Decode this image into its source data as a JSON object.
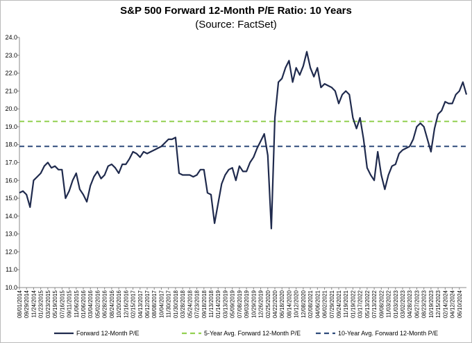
{
  "chart_data": {
    "type": "line",
    "title": "S&P 500 Forward 12-Month P/E Ratio: 10 Years",
    "subtitle": "(Source: FactSet)",
    "categories": [
      "08/01/2014",
      null,
      "09/29/2014",
      null,
      "11/24/2014",
      null,
      "01/23/2015",
      null,
      "03/23/2015",
      null,
      "05/19/2015",
      null,
      "07/16/2015",
      null,
      "09/11/2015",
      null,
      "11/06/2015",
      null,
      "01/06/2016",
      null,
      "03/04/2016",
      null,
      "05/02/2016",
      null,
      "06/28/2016",
      null,
      "08/24/2016",
      null,
      "10/20/2016",
      null,
      "12/16/2016",
      null,
      "02/15/2017",
      null,
      "04/13/2017",
      null,
      "06/12/2017",
      null,
      "08/08/2017",
      null,
      "10/04/2017",
      null,
      "11/30/2017",
      null,
      "01/30/2018",
      null,
      "03/28/2018",
      null,
      "05/24/2018",
      null,
      "07/23/2018",
      null,
      "09/18/2018",
      null,
      "11/13/2018",
      null,
      "01/14/2019",
      null,
      "03/13/2019",
      null,
      "05/09/2019",
      null,
      "07/08/2019",
      null,
      "09/03/2019",
      null,
      "10/29/2019",
      null,
      "12/26/2019",
      null,
      "02/25/2020",
      null,
      "04/22/2020",
      null,
      "06/18/2020",
      null,
      "08/14/2020",
      null,
      "10/12/2020",
      null,
      "12/08/2020",
      null,
      "02/08/2021",
      null,
      "04/06/2021",
      null,
      "06/02/2021",
      null,
      "07/29/2021",
      null,
      "09/24/2021",
      null,
      "11/19/2021",
      null,
      "01/19/2022",
      null,
      "03/17/2022",
      null,
      "05/13/2022",
      null,
      "07/13/2022",
      null,
      "09/08/2022",
      null,
      "11/03/2022",
      null,
      "01/03/2023",
      null,
      "03/02/2023",
      null,
      "04/28/2023",
      null,
      "06/27/2023",
      null,
      "08/23/2023",
      null,
      "10/19/2023",
      null,
      "12/15/2023",
      null,
      "02/14/2024",
      null,
      "04/12/2024",
      null,
      "06/10/2024",
      null,
      null
    ],
    "series": [
      {
        "name": "Forward 12-Month P/E",
        "color": "#1f2a4d",
        "values": [
          15.3,
          15.4,
          15.2,
          14.5,
          16.0,
          16.2,
          16.4,
          16.8,
          17.0,
          16.7,
          16.8,
          16.6,
          16.6,
          15.0,
          15.4,
          16.0,
          16.4,
          15.5,
          15.2,
          14.8,
          15.7,
          16.2,
          16.5,
          16.1,
          16.3,
          16.8,
          16.9,
          16.7,
          16.4,
          16.9,
          16.9,
          17.2,
          17.6,
          17.5,
          17.3,
          17.6,
          17.5,
          17.6,
          17.7,
          17.8,
          17.9,
          18.1,
          18.3,
          18.3,
          18.4,
          16.4,
          16.3,
          16.3,
          16.3,
          16.2,
          16.3,
          16.6,
          16.6,
          15.3,
          15.2,
          13.6,
          14.7,
          15.8,
          16.3,
          16.6,
          16.7,
          16.0,
          16.8,
          16.5,
          16.5,
          17.0,
          17.3,
          17.8,
          18.2,
          18.6,
          17.4,
          13.3,
          19.5,
          21.5,
          21.7,
          22.3,
          22.7,
          21.5,
          22.3,
          21.9,
          22.4,
          23.2,
          22.3,
          21.8,
          22.3,
          21.2,
          21.4,
          21.3,
          21.2,
          21.0,
          20.3,
          20.8,
          21.0,
          20.8,
          19.5,
          18.9,
          19.5,
          18.3,
          16.7,
          16.3,
          16.0,
          17.6,
          16.3,
          15.5,
          16.3,
          16.8,
          16.9,
          17.5,
          17.7,
          17.8,
          17.9,
          18.3,
          19.0,
          19.2,
          19.0,
          18.3,
          17.6,
          18.9,
          19.7,
          19.9,
          20.4,
          20.3,
          20.3,
          20.8,
          21.0,
          21.5,
          20.8
        ]
      }
    ],
    "reference_lines": [
      {
        "name": "5-Year Avg. Forward 12-Month P/E",
        "color": "#92d050",
        "value": 19.3,
        "dashed": true
      },
      {
        "name": "10-Year Avg. Forward 12-Month P/E",
        "color": "#2e4a7a",
        "value": 17.9,
        "dashed": true
      }
    ],
    "ylim": [
      10,
      24
    ],
    "yticks": [
      {
        "value": 10,
        "label": "10.0"
      },
      {
        "value": 11,
        "label": "11.0"
      },
      {
        "value": 12,
        "label": "12.0"
      },
      {
        "value": 13,
        "label": "13.0"
      },
      {
        "value": 14,
        "label": "14.0"
      },
      {
        "value": 15,
        "label": "15.0"
      },
      {
        "value": 16,
        "label": "16.0"
      },
      {
        "value": 17,
        "label": "17.0"
      },
      {
        "value": 18,
        "label": "18.0"
      },
      {
        "value": 19,
        "label": "19.0"
      },
      {
        "value": 20,
        "label": "20.0"
      },
      {
        "value": 21,
        "label": "21.0"
      },
      {
        "value": 22,
        "label": "22.0"
      },
      {
        "value": 23,
        "label": "23.0"
      },
      {
        "value": 24,
        "label": "24.0"
      }
    ],
    "grid": false
  }
}
